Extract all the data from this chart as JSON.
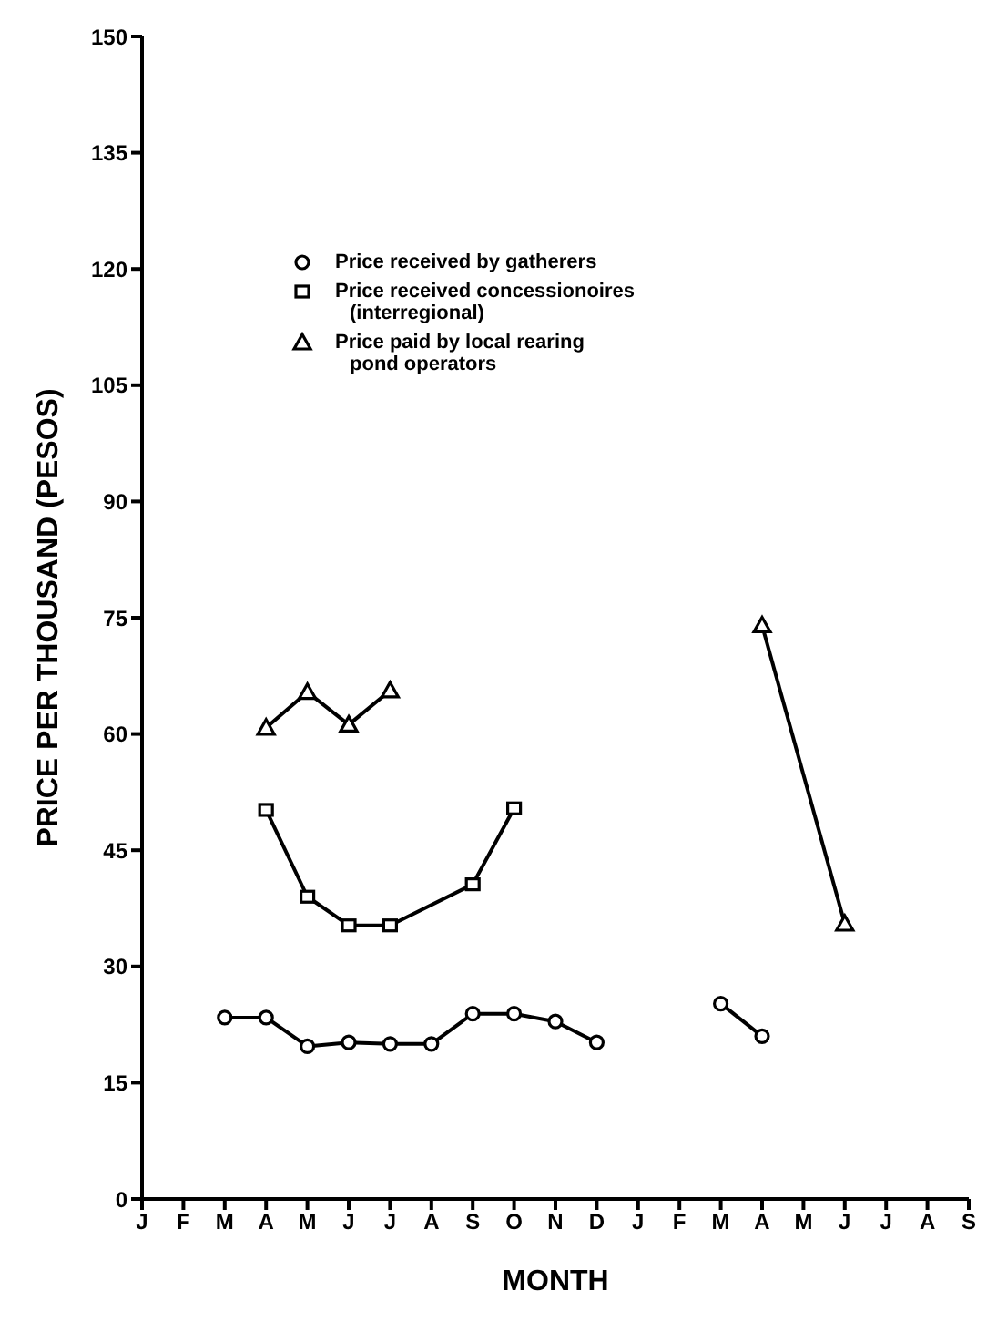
{
  "chart_data": {
    "type": "line",
    "xlabel": "MONTH",
    "ylabel": "PRICE PER THOUSAND (PESOS)",
    "categories": [
      "J",
      "F",
      "M",
      "A",
      "M",
      "J",
      "J",
      "A",
      "S",
      "O",
      "N",
      "D",
      "J",
      "F",
      "M",
      "A",
      "M",
      "J",
      "J",
      "A",
      "S"
    ],
    "ylim": [
      0,
      150
    ],
    "yticks": [
      0,
      15,
      30,
      45,
      60,
      75,
      90,
      105,
      120,
      135,
      150
    ],
    "grid": false,
    "legend": "top left",
    "series": [
      {
        "name": "Price received by gatherers",
        "color": "#000000",
        "marker": "circle",
        "values": [
          null,
          null,
          23.4,
          23.4,
          19.7,
          20.2,
          20,
          20,
          23.9,
          23.9,
          22.9,
          20.2,
          null,
          null,
          null,
          null,
          null,
          null,
          null,
          null,
          null
        ]
      },
      {
        "color": "#000000",
        "marker": "circle",
        "values": [
          null,
          null,
          null,
          null,
          null,
          null,
          null,
          null,
          null,
          null,
          null,
          null,
          null,
          null,
          25.2,
          21,
          null,
          null,
          null,
          null,
          null
        ]
      },
      {
        "name": "Price received concessionoires\n(interregional)",
        "color": "#000000",
        "marker": "square",
        "values": [
          null,
          null,
          null,
          50.2,
          39,
          35.3,
          35.3,
          null,
          40.6,
          50.4,
          null,
          null,
          null,
          null,
          null,
          null,
          null,
          null,
          null,
          null,
          null
        ]
      },
      {
        "name": "Price paid by local rearing\npond operators",
        "color": "#000000",
        "marker": "triangle",
        "values": [
          null,
          null,
          null,
          60.8,
          65.4,
          61.2,
          65.6,
          null,
          null,
          null,
          null,
          null,
          null,
          null,
          null,
          null,
          null,
          null,
          null,
          null,
          null
        ]
      },
      {
        "color": "#000000",
        "marker": "triangle",
        "values": [
          null,
          null,
          null,
          null,
          null,
          null,
          null,
          null,
          null,
          null,
          null,
          null,
          null,
          null,
          null,
          74,
          null,
          35.5,
          null,
          null,
          null
        ]
      }
    ]
  }
}
